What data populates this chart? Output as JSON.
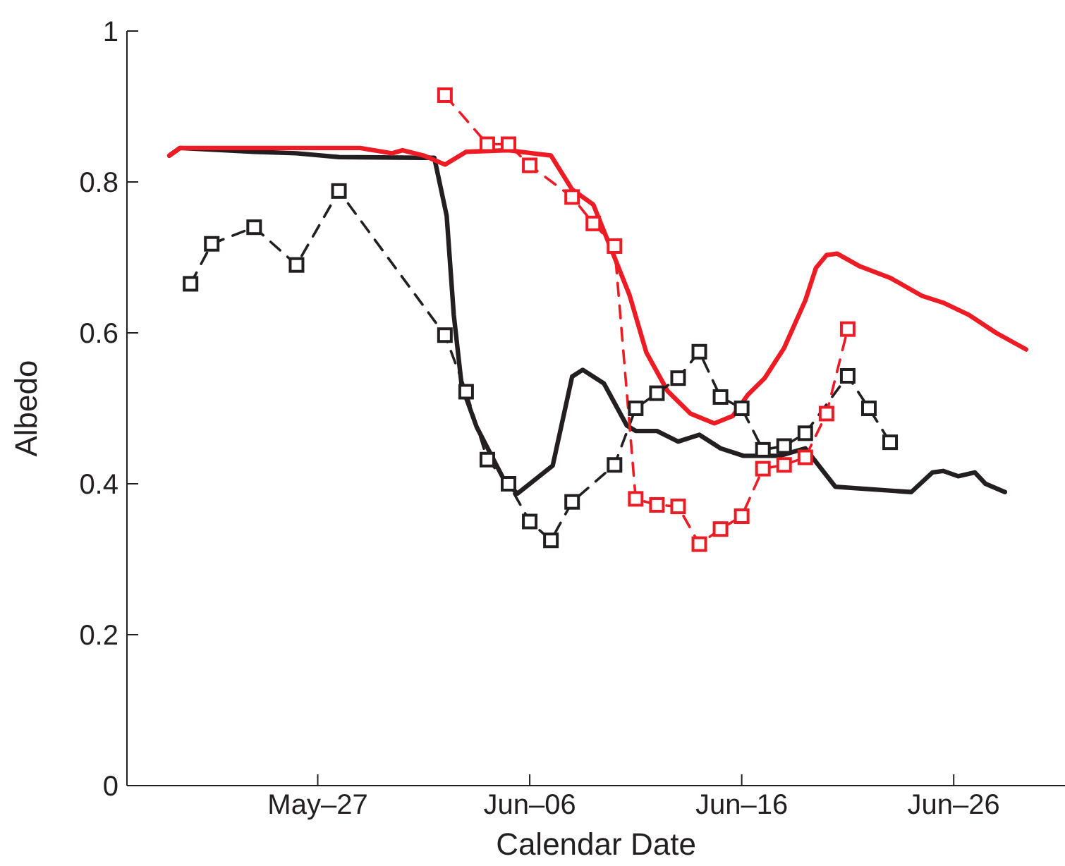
{
  "chart_data": {
    "type": "line",
    "xlabel": "Calendar Date",
    "ylabel": "Albedo",
    "xlim": [
      "--05-18",
      "--07-01T06:00"
    ],
    "xticks": [
      {
        "value": "--05-27",
        "label": "May–27"
      },
      {
        "value": "--06-06",
        "label": "Jun–06"
      },
      {
        "value": "--06-16",
        "label": "Jun–16"
      },
      {
        "value": "--06-26",
        "label": "Jun–26"
      }
    ],
    "ylim": [
      0,
      1
    ],
    "yticks": [
      0,
      0.2,
      0.4,
      0.6,
      0.8,
      1
    ],
    "series": [
      {
        "color": "#231f20",
        "marker": "none",
        "line_style": "solid",
        "x": [
          "--05-20",
          "--05-20T12:00",
          "--05-24",
          "--05-26",
          "--05-28",
          "--06-01",
          "--06-01T12:00",
          "--06-02T02:00",
          "--06-02T10:00",
          "--06-02T19:00",
          "--06-03T12:00",
          "--06-04T19:00",
          "--06-05T10:00",
          "--06-07T02:00",
          "--06-08",
          "--06-08T12:00",
          "--06-09T12:00",
          "--06-10T14:00",
          "--06-11",
          "--06-12",
          "--06-13",
          "--06-14",
          "--06-15",
          "--06-16T02:00",
          "--06-17T19:00",
          "--06-19",
          "--06-20T10:00",
          "--06-24",
          "--06-25",
          "--06-25T12:00",
          "--06-26T05:00",
          "--06-27",
          "--06-27T12:00",
          "--06-28T10:00"
        ],
        "values": [
          0.835,
          0.845,
          0.84,
          0.838,
          0.833,
          0.832,
          0.832,
          0.755,
          0.624,
          0.53,
          0.475,
          0.405,
          0.387,
          0.424,
          0.542,
          0.551,
          0.533,
          0.477,
          0.47,
          0.47,
          0.456,
          0.465,
          0.447,
          0.437,
          0.437,
          0.447,
          0.396,
          0.389,
          0.415,
          0.417,
          0.41,
          0.415,
          0.4,
          0.389
        ]
      },
      {
        "color": "#ed1c24",
        "marker": "none",
        "line_style": "solid",
        "x": [
          "--05-20",
          "--05-20T12:00",
          "--05-29",
          "--05-30T12:00",
          "--05-31",
          "--06-01",
          "--06-02",
          "--06-03",
          "--06-05",
          "--06-07",
          "--06-08",
          "--06-09",
          "--06-10",
          "--06-10T17:00",
          "--06-11T12:00",
          "--06-12T12:00",
          "--06-13T14:00",
          "--06-14T17:00",
          "--06-15T14:00",
          "--06-16T07:00",
          "--06-17T02:00",
          "--06-18",
          "--06-19",
          "--06-19T12:00",
          "--06-20",
          "--06-20T12:00",
          "--06-21T14:00",
          "--06-23",
          "--06-24T12:00",
          "--06-25T12:00",
          "--06-26T17:00",
          "--06-28",
          "--06-29T10:00"
        ],
        "values": [
          0.835,
          0.845,
          0.845,
          0.838,
          0.842,
          0.835,
          0.823,
          0.84,
          0.842,
          0.835,
          0.79,
          0.77,
          0.7,
          0.65,
          0.574,
          0.523,
          0.493,
          0.48,
          0.49,
          0.518,
          0.54,
          0.58,
          0.643,
          0.686,
          0.703,
          0.705,
          0.688,
          0.673,
          0.649,
          0.64,
          0.624,
          0.6,
          0.578
        ]
      },
      {
        "color": "#231f20",
        "marker": "square",
        "line_style": "dashed",
        "x": [
          "--05-21",
          "--05-22",
          "--05-24",
          "--05-26",
          "--05-28",
          "--06-02",
          "--06-03",
          "--06-04",
          "--06-05",
          "--06-06",
          "--06-07",
          "--06-08",
          "--06-10",
          "--06-11",
          "--06-12",
          "--06-13",
          "--06-14",
          "--06-15",
          "--06-16",
          "--06-17",
          "--06-18",
          "--06-19",
          "--06-21",
          "--06-22",
          "--06-23"
        ],
        "values": [
          0.665,
          0.718,
          0.74,
          0.69,
          0.788,
          0.597,
          0.522,
          0.432,
          0.4,
          0.35,
          0.325,
          0.376,
          0.425,
          0.5,
          0.52,
          0.54,
          0.575,
          0.515,
          0.5,
          0.445,
          0.45,
          0.467,
          0.543,
          0.5,
          0.455
        ]
      },
      {
        "color": "#ed1c24",
        "marker": "square",
        "line_style": "dashed",
        "x": [
          "--06-02",
          "--06-04",
          "--06-05",
          "--06-06",
          "--06-08",
          "--06-09",
          "--06-10",
          "--06-11",
          "--06-12",
          "--06-13",
          "--06-14",
          "--06-15",
          "--06-16",
          "--06-17",
          "--06-18",
          "--06-19",
          "--06-20",
          "--06-21"
        ],
        "values": [
          0.915,
          0.85,
          0.85,
          0.822,
          0.78,
          0.745,
          0.715,
          0.38,
          0.372,
          0.37,
          0.32,
          0.34,
          0.357,
          0.42,
          0.425,
          0.435,
          0.493,
          0.605
        ]
      }
    ]
  }
}
